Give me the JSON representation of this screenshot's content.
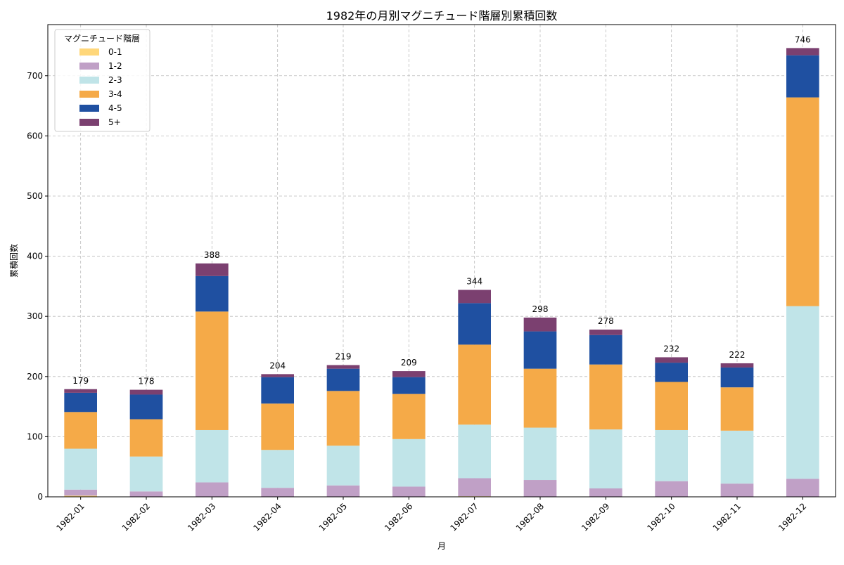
{
  "chart_data": {
    "type": "bar",
    "stacked": true,
    "title": "1982年の月別マグニチュード階層別累積回数",
    "xlabel": "月",
    "ylabel": "累積回数",
    "ylim": [
      0,
      785
    ],
    "yticks": [
      0,
      100,
      200,
      300,
      400,
      500,
      600,
      700
    ],
    "grid": true,
    "legend": {
      "title": "マグニチュード階層",
      "placement": "top-left"
    },
    "categories": [
      "1982-01",
      "1982-02",
      "1982-03",
      "1982-04",
      "1982-05",
      "1982-06",
      "1982-07",
      "1982-08",
      "1982-09",
      "1982-10",
      "1982-11",
      "1982-12"
    ],
    "series": [
      {
        "name": "0-1",
        "color": "#FFD77A",
        "values": [
          2,
          0,
          0,
          0,
          0,
          0,
          1,
          0,
          0,
          0,
          0,
          0
        ]
      },
      {
        "name": "1-2",
        "color": "#C0A0C6",
        "values": [
          10,
          9,
          24,
          15,
          19,
          17,
          30,
          28,
          14,
          26,
          22,
          30
        ]
      },
      {
        "name": "2-3",
        "color": "#C0E4E8",
        "values": [
          68,
          58,
          87,
          63,
          66,
          79,
          89,
          87,
          98,
          85,
          88,
          287
        ]
      },
      {
        "name": "3-4",
        "color": "#F5AA48",
        "values": [
          61,
          62,
          197,
          77,
          91,
          75,
          133,
          98,
          108,
          80,
          72,
          347
        ]
      },
      {
        "name": "4-5",
        "color": "#1F50A1",
        "values": [
          32,
          41,
          59,
          44,
          37,
          28,
          69,
          62,
          49,
          32,
          33,
          70
        ]
      },
      {
        "name": "5+",
        "color": "#7B4070",
        "values": [
          6,
          8,
          21,
          5,
          6,
          10,
          22,
          23,
          9,
          9,
          7,
          12
        ]
      }
    ],
    "totals": [
      179,
      178,
      388,
      204,
      219,
      209,
      344,
      298,
      278,
      232,
      222,
      746
    ]
  }
}
